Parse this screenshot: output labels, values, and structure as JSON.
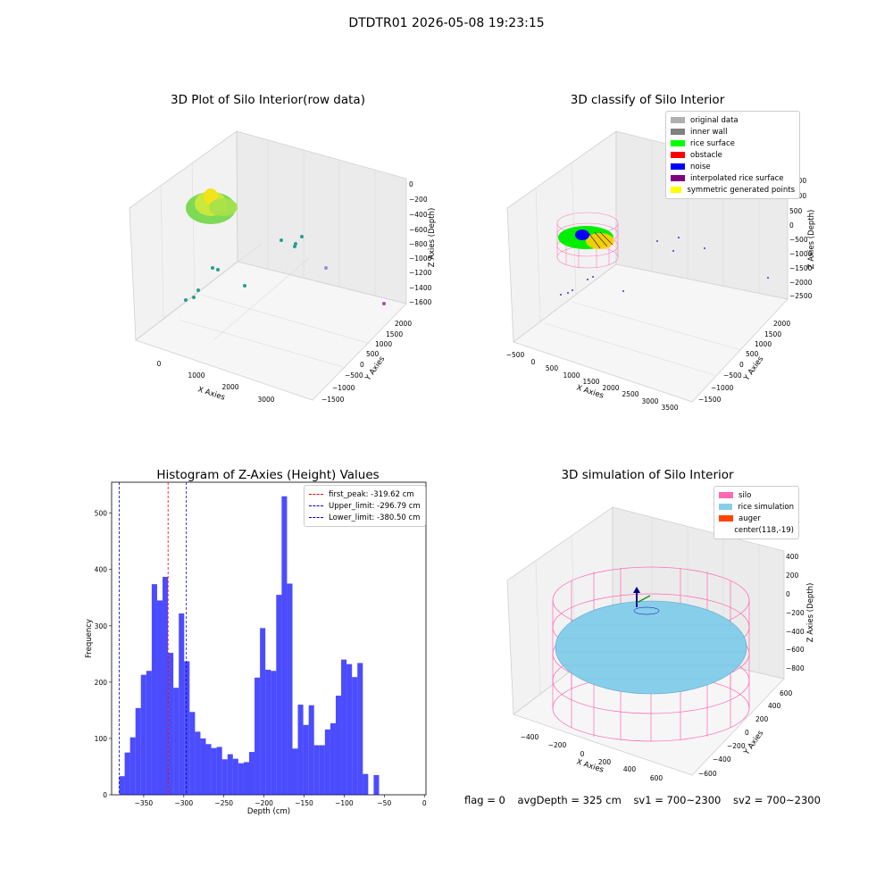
{
  "window_title": "DTDTR01 2026-05-08 19:23:15",
  "panels": {
    "raw": {
      "title": "3D Plot of Silo Interior(row data)",
      "xlabel": "X Axies",
      "ylabel": "Y Axies",
      "zlabel": "Z Axies (Depth)",
      "xticks": [
        "0",
        "1000",
        "2000",
        "3000"
      ],
      "yticks": [
        "2000",
        "1500",
        "1000",
        "500",
        "0",
        "−500",
        "−1000",
        "−1500"
      ],
      "zticks": [
        "0",
        "−200",
        "−400",
        "−600",
        "−800",
        "−1000",
        "−1200",
        "−1400",
        "−1600"
      ]
    },
    "classify": {
      "title": "3D classify of Silo Interior",
      "xlabel": "X Axies",
      "ylabel": "Y Axies",
      "zlabel": "Z Axies (Depth)",
      "xticks": [
        "−500",
        "0",
        "500",
        "1000",
        "1500",
        "2000",
        "2500",
        "3000",
        "3500"
      ],
      "yticks": [
        "2000",
        "1500",
        "1000",
        "500",
        "0",
        "−500",
        "−1000",
        "−1500"
      ],
      "zticks": [
        "1500",
        "1000",
        "500",
        "0",
        "−500",
        "−1000",
        "−1500",
        "−2000",
        "−2500"
      ],
      "legend": [
        {
          "label": "original data",
          "color": "#b0b0b0"
        },
        {
          "label": "inner wall",
          "color": "#808080"
        },
        {
          "label": "rice surface",
          "color": "#00ff00"
        },
        {
          "label": "obstacle",
          "color": "#ff0000"
        },
        {
          "label": "noise",
          "color": "#0000ff"
        },
        {
          "label": "interpolated rice surface",
          "color": "#800080"
        },
        {
          "label": "symmetric generated points",
          "color": "#ffff00"
        }
      ]
    },
    "simulation": {
      "title": "3D simulation of Silo Interior",
      "xlabel": "X Axies",
      "ylabel": "Y Axies",
      "zlabel": "Z Axies (Depth)",
      "xticks": [
        "−400",
        "−200",
        "0",
        "200",
        "400",
        "600"
      ],
      "yticks": [
        "600",
        "400",
        "200",
        "0",
        "−200",
        "−400",
        "−600"
      ],
      "zticks": [
        "400",
        "200",
        "0",
        "−200",
        "−400",
        "−600",
        "−800"
      ],
      "legend": [
        {
          "label": "silo",
          "color": "#ff69b4"
        },
        {
          "label": "rice simulation",
          "color": "#87ceeb"
        },
        {
          "label": "auger",
          "color": "#ff4500"
        },
        {
          "label": "center(118,-19)",
          "color": "#ffffff"
        }
      ]
    }
  },
  "chart_data": {
    "type": "bar",
    "title": "Histogram of Z-Axies (Height) Values",
    "xlabel": "Depth (cm)",
    "ylabel": "Frequency",
    "xlim": [
      -390,
      2
    ],
    "ylim": [
      0,
      555
    ],
    "xticks": [
      -350,
      -300,
      -250,
      -200,
      -150,
      -100,
      -50,
      0
    ],
    "yticks": [
      0,
      100,
      200,
      300,
      400,
      500
    ],
    "bar_color": "#0000ff",
    "bin_start": -380.5,
    "bin_width": 6.75,
    "values": [
      33,
      75,
      102,
      154,
      213,
      220,
      374,
      345,
      387,
      252,
      190,
      322,
      237,
      147,
      112,
      100,
      90,
      83,
      85,
      63,
      72,
      64,
      56,
      58,
      76,
      208,
      296,
      222,
      220,
      355,
      530,
      375,
      82,
      160,
      124,
      159,
      88,
      88,
      116,
      127,
      176,
      240,
      232,
      209,
      234,
      37,
      0,
      35
    ],
    "lines": [
      {
        "label": "first_peak: -319.62 cm",
        "x": -319.62,
        "color": "#ff0000"
      },
      {
        "label": "Upper_limit: -296.79 cm",
        "x": -296.79,
        "color": "#0000cd"
      },
      {
        "label": "Lower_limit: -380.50 cm",
        "x": -380.5,
        "color": "#0000cd"
      }
    ],
    "legend_position": "top-right"
  },
  "footer": {
    "flag": "flag = 0",
    "avg_depth": "avgDepth = 325 cm",
    "sv1": "sv1 = 700~2300",
    "sv2": "sv2 = 700~2300"
  }
}
